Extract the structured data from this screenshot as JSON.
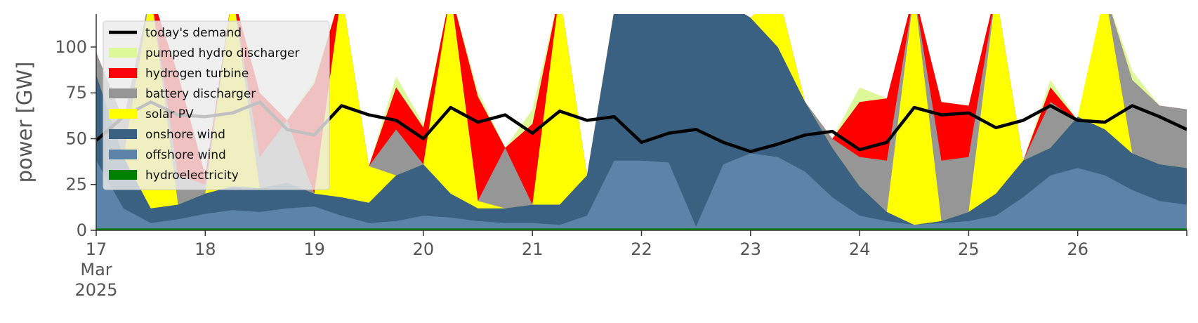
{
  "chart_data": {
    "type": "area",
    "ylabel": "power [GW]",
    "ylim": [
      0,
      118
    ],
    "xlim": [
      0,
      10
    ],
    "y_ticks": [
      {
        "value": 0,
        "label": "0"
      },
      {
        "value": 25,
        "label": "25"
      },
      {
        "value": 50,
        "label": "50"
      },
      {
        "value": 75,
        "label": "75"
      },
      {
        "value": 100,
        "label": "100"
      }
    ],
    "x_ticks": [
      {
        "value": 0,
        "label": "17",
        "sub1": "Mar",
        "sub2": "2025"
      },
      {
        "value": 1,
        "label": "18"
      },
      {
        "value": 2,
        "label": "19"
      },
      {
        "value": 3,
        "label": "20"
      },
      {
        "value": 4,
        "label": "21"
      },
      {
        "value": 5,
        "label": "22"
      },
      {
        "value": 6,
        "label": "23"
      },
      {
        "value": 7,
        "label": "24"
      },
      {
        "value": 8,
        "label": "25"
      },
      {
        "value": 9,
        "label": "26"
      },
      {
        "value": 10,
        "label": ""
      }
    ],
    "legend_placement": "upper-left",
    "x": [
      0.0,
      0.25,
      0.5,
      0.75,
      1.0,
      1.25,
      1.5,
      1.75,
      2.0,
      2.25,
      2.5,
      2.75,
      3.0,
      3.25,
      3.5,
      3.75,
      4.0,
      4.25,
      4.5,
      4.75,
      5.0,
      5.25,
      5.5,
      5.75,
      6.0,
      6.25,
      6.5,
      6.75,
      7.0,
      7.25,
      7.5,
      7.75,
      8.0,
      8.25,
      8.5,
      8.75,
      9.0,
      9.25,
      9.5,
      9.75,
      10.0
    ],
    "series": [
      {
        "name": "hydroelectricity",
        "color": "#008000",
        "values": [
          1,
          1,
          1,
          1,
          1,
          1,
          1,
          1,
          1,
          1,
          1,
          1,
          1,
          1,
          1,
          1,
          1,
          1,
          1,
          1,
          1,
          1,
          1,
          1,
          1,
          1,
          1,
          1,
          1,
          1,
          1,
          1,
          1,
          1,
          1,
          1,
          1,
          1,
          1,
          1,
          1
        ]
      },
      {
        "name": "offshore wind",
        "color": "#5b84a8",
        "values": [
          38,
          12,
          4,
          6,
          9,
          11,
          10,
          12,
          13,
          8,
          4,
          5,
          8,
          7,
          5,
          4,
          4,
          3,
          8,
          38,
          38,
          37,
          2,
          36,
          42,
          40,
          32,
          18,
          8,
          5,
          3,
          4,
          5,
          8,
          18,
          30,
          34,
          30,
          22,
          16,
          14
        ]
      },
      {
        "name": "onshore wind",
        "color": "#3a6082",
        "values": [
          85,
          40,
          12,
          14,
          20,
          24,
          23,
          26,
          20,
          18,
          15,
          30,
          36,
          20,
          12,
          12,
          14,
          14,
          30,
          120,
          118,
          118,
          120,
          125,
          116,
          100,
          70,
          45,
          24,
          10,
          3,
          5,
          10,
          20,
          38,
          45,
          62,
          55,
          42,
          36,
          34
        ]
      },
      {
        "name": "solar PV",
        "color": "#ffff00",
        "values": [
          85,
          40,
          130,
          14,
          20,
          130,
          23,
          26,
          20,
          130,
          35,
          30,
          36,
          130,
          16,
          12,
          14,
          130,
          30,
          120,
          118,
          118,
          120,
          125,
          116,
          130,
          70,
          45,
          24,
          10,
          130,
          5,
          10,
          130,
          38,
          45,
          62,
          130,
          42,
          36,
          34
        ]
      },
      {
        "name": "battery discharger",
        "color": "#969696",
        "values": [
          97,
          60,
          130,
          30,
          25,
          130,
          40,
          60,
          20,
          130,
          35,
          55,
          36,
          130,
          16,
          45,
          14,
          130,
          30,
          120,
          118,
          118,
          120,
          125,
          116,
          130,
          70,
          50,
          40,
          38,
          130,
          38,
          40,
          130,
          38,
          70,
          60,
          130,
          82,
          68,
          66
        ]
      },
      {
        "name": "hydrogen turbine",
        "color": "#ff0000",
        "values": [
          97,
          60,
          130,
          85,
          30,
          130,
          75,
          60,
          80,
          130,
          35,
          78,
          56,
          130,
          73,
          45,
          58,
          130,
          30,
          120,
          118,
          118,
          120,
          125,
          116,
          130,
          70,
          50,
          70,
          72,
          130,
          70,
          68,
          130,
          38,
          78,
          60,
          130,
          82,
          68,
          66
        ]
      },
      {
        "name": "pumped hydro discharger",
        "color": "#dcf898",
        "values": [
          97,
          60,
          130,
          85,
          30,
          130,
          75,
          60,
          82,
          130,
          35,
          84,
          58,
          130,
          76,
          45,
          66,
          130,
          30,
          120,
          118,
          118,
          120,
          125,
          116,
          130,
          70,
          50,
          78,
          72,
          130,
          70,
          68,
          130,
          38,
          82,
          60,
          130,
          87,
          68,
          66
        ]
      }
    ],
    "demand": {
      "name": "today's demand",
      "color": "#000000",
      "values": [
        49,
        62,
        70,
        63,
        62,
        64,
        70,
        55,
        52,
        68,
        63,
        60,
        50,
        67,
        59,
        63,
        53,
        65,
        60,
        62,
        48,
        53,
        55,
        48,
        43,
        47,
        52,
        54,
        44,
        48,
        67,
        63,
        64,
        56,
        60,
        68,
        60,
        59,
        68,
        62,
        55
      ]
    }
  }
}
